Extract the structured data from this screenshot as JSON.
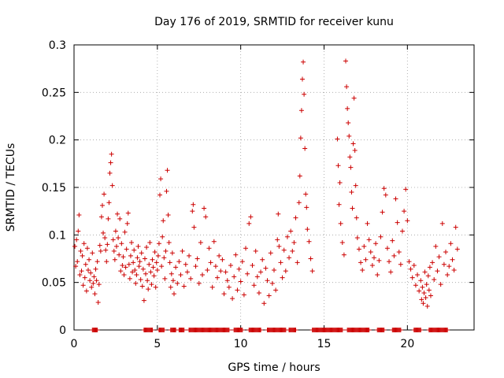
{
  "chart_data": {
    "type": "scatter",
    "title": "Day 176 of 2019, SRMTID for receiver kunu",
    "xlabel": "GPS time / hours",
    "ylabel": "SRMTID / TECUs",
    "xlim": [
      0,
      24
    ],
    "ylim": [
      0,
      0.3
    ],
    "xticks": [
      0,
      5,
      10,
      15,
      20
    ],
    "yticks": [
      0,
      0.05,
      0.1,
      0.15,
      0.2,
      0.25,
      0.3
    ],
    "xtick_labels": [
      "0",
      "5",
      "10",
      "15",
      "20"
    ],
    "ytick_labels": [
      "0",
      "0.05",
      "0.1",
      "0.15",
      "0.2",
      "0.25",
      "0.3"
    ],
    "grid": true,
    "marker": "+",
    "color": "#cc0000",
    "series": [
      {
        "name": "SRMTID",
        "points": [
          [
            0.05,
            0.088
          ],
          [
            0.1,
            0.067
          ],
          [
            0.15,
            0.095
          ],
          [
            0.2,
            0.072
          ],
          [
            0.25,
            0.104
          ],
          [
            0.3,
            0.121
          ],
          [
            0.35,
            0.058
          ],
          [
            0.4,
            0.083
          ],
          [
            0.45,
            0.062
          ],
          [
            0.5,
            0.078
          ],
          [
            0.55,
            0.047
          ],
          [
            0.6,
            0.091
          ],
          [
            0.65,
            0.055
          ],
          [
            0.7,
            0.069
          ],
          [
            0.75,
            0.041
          ],
          [
            0.8,
            0.086
          ],
          [
            0.85,
            0.063
          ],
          [
            0.9,
            0.074
          ],
          [
            0.95,
            0.052
          ],
          [
            1.0,
            0.06
          ],
          [
            1.05,
            0.045
          ],
          [
            1.1,
            0.081
          ],
          [
            1.15,
            0.049
          ],
          [
            1.2,
            0.056
          ],
          [
            1.25,
            0.038
          ],
          [
            1.3,
            0.064
          ],
          [
            1.35,
            0.052
          ],
          [
            1.4,
            0.072
          ],
          [
            1.45,
            0.029
          ],
          [
            1.5,
            0.048
          ],
          [
            1.55,
            0.089
          ],
          [
            1.6,
            0.083
          ],
          [
            1.65,
            0.119
          ],
          [
            1.7,
            0.131
          ],
          [
            1.75,
            0.102
          ],
          [
            1.8,
            0.143
          ],
          [
            1.85,
            0.097
          ],
          [
            1.9,
            0.084
          ],
          [
            1.95,
            0.072
          ],
          [
            2.0,
            0.09
          ],
          [
            2.05,
            0.117
          ],
          [
            2.1,
            0.134
          ],
          [
            2.15,
            0.165
          ],
          [
            2.2,
            0.176
          ],
          [
            2.25,
            0.185
          ],
          [
            2.3,
            0.152
          ],
          [
            2.35,
            0.095
          ],
          [
            2.4,
            0.083
          ],
          [
            2.45,
            0.074
          ],
          [
            2.5,
            0.104
          ],
          [
            2.55,
            0.088
          ],
          [
            2.6,
            0.122
          ],
          [
            2.65,
            0.097
          ],
          [
            2.7,
            0.079
          ],
          [
            2.75,
            0.117
          ],
          [
            2.8,
            0.062
          ],
          [
            2.85,
            0.091
          ],
          [
            2.9,
            0.068
          ],
          [
            2.95,
            0.077
          ],
          [
            3.0,
            0.058
          ],
          [
            3.05,
            0.103
          ],
          [
            3.1,
            0.066
          ],
          [
            3.15,
            0.085
          ],
          [
            3.2,
            0.112
          ],
          [
            3.25,
            0.123
          ],
          [
            3.3,
            0.069
          ],
          [
            3.35,
            0.054
          ],
          [
            3.4,
            0.078
          ],
          [
            3.45,
            0.092
          ],
          [
            3.5,
            0.061
          ],
          [
            3.55,
            0.071
          ],
          [
            3.6,
            0.084
          ],
          [
            3.65,
            0.063
          ],
          [
            3.7,
            0.049
          ],
          [
            3.75,
            0.058
          ],
          [
            3.8,
            0.076
          ],
          [
            3.85,
            0.088
          ],
          [
            3.9,
            0.067
          ],
          [
            3.95,
            0.072
          ],
          [
            4.0,
            0.053
          ],
          [
            4.05,
            0.081
          ],
          [
            4.1,
            0.046
          ],
          [
            4.15,
            0.064
          ],
          [
            4.2,
            0.031
          ],
          [
            4.25,
            0.075
          ],
          [
            4.3,
            0.059
          ],
          [
            4.35,
            0.087
          ],
          [
            4.4,
            0.052
          ],
          [
            4.45,
            0.043
          ],
          [
            4.5,
            0.069
          ],
          [
            4.55,
            0.092
          ],
          [
            4.6,
            0.061
          ],
          [
            4.65,
            0.048
          ],
          [
            4.7,
            0.074
          ],
          [
            4.75,
            0.066
          ],
          [
            4.8,
            0.057
          ],
          [
            4.85,
            0.082
          ],
          [
            4.9,
            0.045
          ],
          [
            4.95,
            0.071
          ],
          [
            5.0,
            0.063
          ],
          [
            5.05,
            0.078
          ],
          [
            5.1,
            0.091
          ],
          [
            5.15,
            0.142
          ],
          [
            5.2,
            0.159
          ],
          [
            5.25,
            0.067
          ],
          [
            5.3,
            0.098
          ],
          [
            5.35,
            0.115
          ],
          [
            5.4,
            0.076
          ],
          [
            5.45,
            0.054
          ],
          [
            5.5,
            0.083
          ],
          [
            5.55,
            0.146
          ],
          [
            5.6,
            0.168
          ],
          [
            5.65,
            0.121
          ],
          [
            5.7,
            0.092
          ],
          [
            5.75,
            0.071
          ],
          [
            5.8,
            0.045
          ],
          [
            5.85,
            0.059
          ],
          [
            5.9,
            0.081
          ],
          [
            5.95,
            0.052
          ],
          [
            6.0,
            0.038
          ],
          [
            6.1,
            0.066
          ],
          [
            6.2,
            0.049
          ],
          [
            6.3,
            0.072
          ],
          [
            6.4,
            0.058
          ],
          [
            6.5,
            0.083
          ],
          [
            6.6,
            0.046
          ],
          [
            6.7,
            0.069
          ],
          [
            6.8,
            0.061
          ],
          [
            6.9,
            0.078
          ],
          [
            7.0,
            0.054
          ],
          [
            7.1,
            0.125
          ],
          [
            7.15,
            0.132
          ],
          [
            7.2,
            0.108
          ],
          [
            7.3,
            0.067
          ],
          [
            7.4,
            0.075
          ],
          [
            7.5,
            0.049
          ],
          [
            7.6,
            0.092
          ],
          [
            7.7,
            0.058
          ],
          [
            7.8,
            0.128
          ],
          [
            7.9,
            0.119
          ],
          [
            8.0,
            0.063
          ],
          [
            8.1,
            0.086
          ],
          [
            8.2,
            0.071
          ],
          [
            8.3,
            0.045
          ],
          [
            8.4,
            0.093
          ],
          [
            8.5,
            0.067
          ],
          [
            8.6,
            0.055
          ],
          [
            8.7,
            0.078
          ],
          [
            8.8,
            0.062
          ],
          [
            8.9,
            0.074
          ],
          [
            9.0,
            0.038
          ],
          [
            9.1,
            0.061
          ],
          [
            9.2,
            0.052
          ],
          [
            9.3,
            0.045
          ],
          [
            9.4,
            0.068
          ],
          [
            9.5,
            0.033
          ],
          [
            9.6,
            0.056
          ],
          [
            9.7,
            0.079
          ],
          [
            9.8,
            0.042
          ],
          [
            9.9,
            0.064
          ],
          [
            10.0,
            0.051
          ],
          [
            10.1,
            0.072
          ],
          [
            10.2,
            0.037
          ],
          [
            10.3,
            0.086
          ],
          [
            10.4,
            0.059
          ],
          [
            10.5,
            0.112
          ],
          [
            10.6,
            0.119
          ],
          [
            10.7,
            0.068
          ],
          [
            10.8,
            0.047
          ],
          [
            10.9,
            0.083
          ],
          [
            11.0,
            0.056
          ],
          [
            11.1,
            0.039
          ],
          [
            11.2,
            0.061
          ],
          [
            11.3,
            0.074
          ],
          [
            11.4,
            0.028
          ],
          [
            11.5,
            0.065
          ],
          [
            11.6,
            0.052
          ],
          [
            11.7,
            0.036
          ],
          [
            11.8,
            0.081
          ],
          [
            11.9,
            0.049
          ],
          [
            12.0,
            0.063
          ],
          [
            12.1,
            0.042
          ],
          [
            12.2,
            0.095
          ],
          [
            12.25,
            0.122
          ],
          [
            12.3,
            0.088
          ],
          [
            12.4,
            0.071
          ],
          [
            12.5,
            0.055
          ],
          [
            12.6,
            0.084
          ],
          [
            12.7,
            0.062
          ],
          [
            12.8,
            0.098
          ],
          [
            12.9,
            0.076
          ],
          [
            13.0,
            0.104
          ],
          [
            13.1,
            0.083
          ],
          [
            13.2,
            0.092
          ],
          [
            13.3,
            0.118
          ],
          [
            13.4,
            0.071
          ],
          [
            13.5,
            0.134
          ],
          [
            13.55,
            0.162
          ],
          [
            13.6,
            0.202
          ],
          [
            13.65,
            0.231
          ],
          [
            13.7,
            0.264
          ],
          [
            13.75,
            0.282
          ],
          [
            13.8,
            0.248
          ],
          [
            13.85,
            0.191
          ],
          [
            13.9,
            0.143
          ],
          [
            13.95,
            0.129
          ],
          [
            14.0,
            0.106
          ],
          [
            14.1,
            0.093
          ],
          [
            14.2,
            0.075
          ],
          [
            14.3,
            0.062
          ],
          [
            15.8,
            0.201
          ],
          [
            15.85,
            0.173
          ],
          [
            15.9,
            0.132
          ],
          [
            15.95,
            0.155
          ],
          [
            16.0,
            0.112
          ],
          [
            16.1,
            0.092
          ],
          [
            16.2,
            0.079
          ],
          [
            16.3,
            0.283
          ],
          [
            16.35,
            0.256
          ],
          [
            16.4,
            0.233
          ],
          [
            16.45,
            0.218
          ],
          [
            16.5,
            0.204
          ],
          [
            16.55,
            0.182
          ],
          [
            16.6,
            0.171
          ],
          [
            16.65,
            0.145
          ],
          [
            16.7,
            0.128
          ],
          [
            16.75,
            0.196
          ],
          [
            16.8,
            0.244
          ],
          [
            16.85,
            0.189
          ],
          [
            16.9,
            0.152
          ],
          [
            16.95,
            0.118
          ],
          [
            17.0,
            0.097
          ],
          [
            17.1,
            0.085
          ],
          [
            17.2,
            0.071
          ],
          [
            17.3,
            0.063
          ],
          [
            17.4,
            0.088
          ],
          [
            17.5,
            0.074
          ],
          [
            17.6,
            0.112
          ],
          [
            17.7,
            0.095
          ],
          [
            17.8,
            0.082
          ],
          [
            17.9,
            0.068
          ],
          [
            18.0,
            0.076
          ],
          [
            18.1,
            0.091
          ],
          [
            18.2,
            0.058
          ],
          [
            18.3,
            0.073
          ],
          [
            18.4,
            0.098
          ],
          [
            18.5,
            0.124
          ],
          [
            18.6,
            0.149
          ],
          [
            18.7,
            0.142
          ],
          [
            18.8,
            0.086
          ],
          [
            18.9,
            0.072
          ],
          [
            19.0,
            0.061
          ],
          [
            19.1,
            0.094
          ],
          [
            19.2,
            0.078
          ],
          [
            19.3,
            0.138
          ],
          [
            19.4,
            0.113
          ],
          [
            19.5,
            0.082
          ],
          [
            19.6,
            0.069
          ],
          [
            19.7,
            0.104
          ],
          [
            19.8,
            0.125
          ],
          [
            19.9,
            0.148
          ],
          [
            20.0,
            0.115
          ],
          [
            20.1,
            0.072
          ],
          [
            20.2,
            0.064
          ],
          [
            20.3,
            0.055
          ],
          [
            20.4,
            0.068
          ],
          [
            20.5,
            0.047
          ],
          [
            20.6,
            0.058
          ],
          [
            20.7,
            0.041
          ],
          [
            20.8,
            0.052
          ],
          [
            20.85,
            0.032
          ],
          [
            20.9,
            0.045
          ],
          [
            20.95,
            0.028
          ],
          [
            21.0,
            0.039
          ],
          [
            21.05,
            0.061
          ],
          [
            21.1,
            0.034
          ],
          [
            21.15,
            0.048
          ],
          [
            21.2,
            0.025
          ],
          [
            21.25,
            0.057
          ],
          [
            21.3,
            0.042
          ],
          [
            21.35,
            0.066
          ],
          [
            21.4,
            0.036
          ],
          [
            21.5,
            0.071
          ],
          [
            21.6,
            0.053
          ],
          [
            21.7,
            0.088
          ],
          [
            21.8,
            0.062
          ],
          [
            21.9,
            0.077
          ],
          [
            22.0,
            0.048
          ],
          [
            22.1,
            0.112
          ],
          [
            22.2,
            0.069
          ],
          [
            22.3,
            0.082
          ],
          [
            22.4,
            0.058
          ],
          [
            22.5,
            0.067
          ],
          [
            22.6,
            0.091
          ],
          [
            22.7,
            0.074
          ],
          [
            22.8,
            0.063
          ],
          [
            22.9,
            0.108
          ],
          [
            23.0,
            0.085
          ]
        ]
      }
    ],
    "zero_segments": [
      [
        1.1,
        1.4
      ],
      [
        4.2,
        4.7
      ],
      [
        5.1,
        5.4
      ],
      [
        5.8,
        6.1
      ],
      [
        6.3,
        6.6
      ],
      [
        6.9,
        9.3
      ],
      [
        9.6,
        10.1
      ],
      [
        10.5,
        11.2
      ],
      [
        11.6,
        12.7
      ],
      [
        12.9,
        13.3
      ],
      [
        14.3,
        16.1
      ],
      [
        16.4,
        17.7
      ],
      [
        18.2,
        18.6
      ],
      [
        19.1,
        19.6
      ],
      [
        20.4,
        20.8
      ],
      [
        21.3,
        22.4
      ]
    ]
  }
}
